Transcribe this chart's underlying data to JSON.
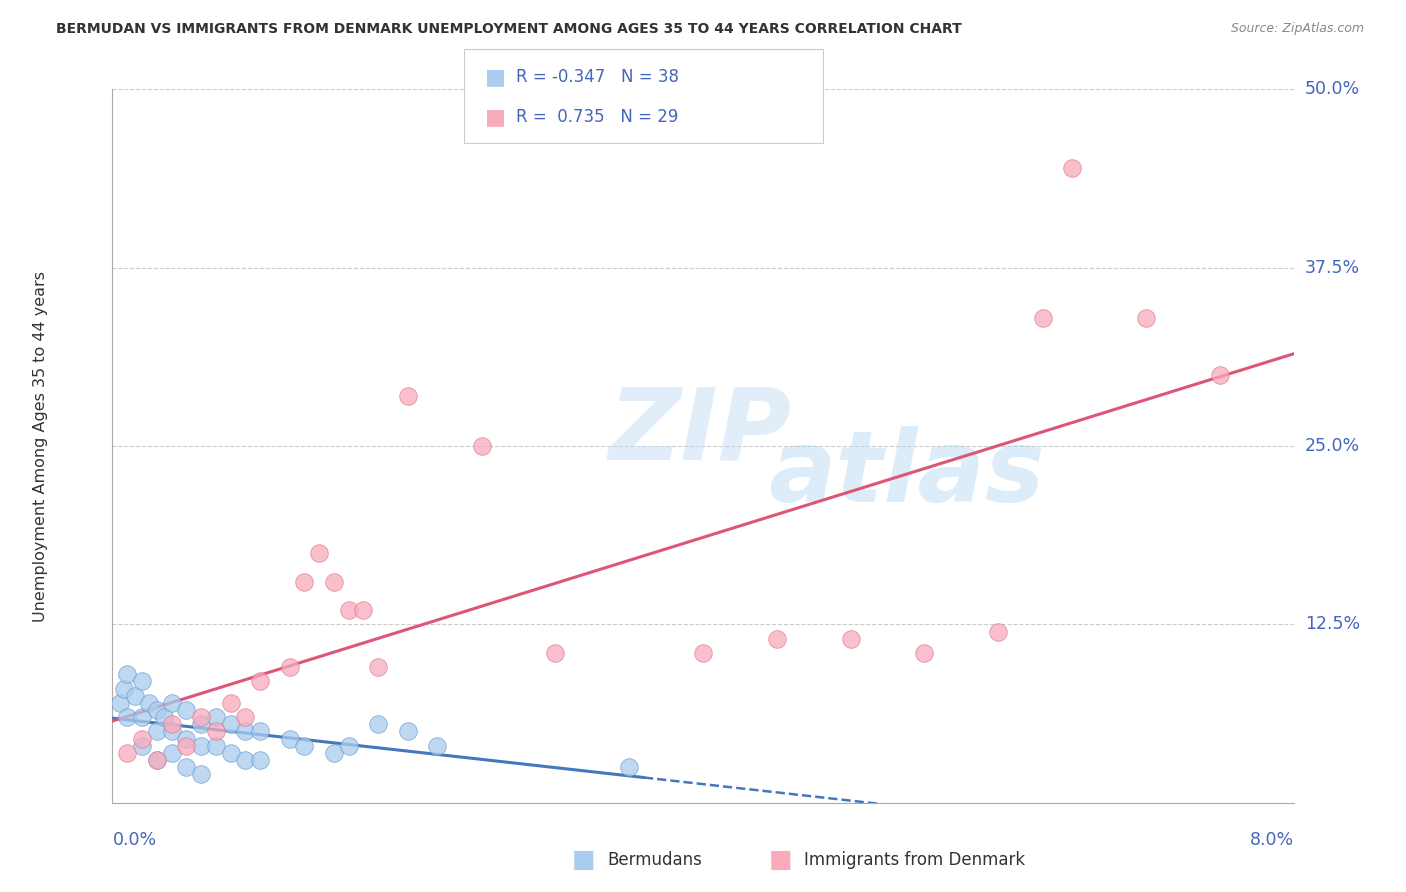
{
  "title": "BERMUDAN VS IMMIGRANTS FROM DENMARK UNEMPLOYMENT AMONG AGES 35 TO 44 YEARS CORRELATION CHART",
  "source": "Source: ZipAtlas.com",
  "ylabel": "Unemployment Among Ages 35 to 44 years",
  "R1": -0.347,
  "N1": 38,
  "R2": 0.735,
  "N2": 29,
  "color_blue_fill": "#aaccee",
  "color_blue_edge": "#6699cc",
  "color_pink_fill": "#f9aabb",
  "color_pink_edge": "#dd7788",
  "line_blue_color": "#4477bb",
  "line_pink_color": "#dd5577",
  "text_blue": "#4466bb",
  "title_color": "#333333",
  "xmin": 0.0,
  "xmax": 0.08,
  "ymin": 0.0,
  "ymax": 0.5,
  "yticks": [
    0.0,
    0.125,
    0.25,
    0.375,
    0.5
  ],
  "ytick_labels": [
    "",
    "12.5%",
    "25.0%",
    "37.5%",
    "50.0%"
  ],
  "legend_label1": "Bermudans",
  "legend_label2": "Immigrants from Denmark",
  "blue_points": [
    [
      0.0005,
      0.07
    ],
    [
      0.0008,
      0.08
    ],
    [
      0.001,
      0.06
    ],
    [
      0.001,
      0.09
    ],
    [
      0.0015,
      0.075
    ],
    [
      0.002,
      0.085
    ],
    [
      0.002,
      0.06
    ],
    [
      0.002,
      0.04
    ],
    [
      0.0025,
      0.07
    ],
    [
      0.003,
      0.065
    ],
    [
      0.003,
      0.05
    ],
    [
      0.003,
      0.03
    ],
    [
      0.0035,
      0.06
    ],
    [
      0.004,
      0.07
    ],
    [
      0.004,
      0.05
    ],
    [
      0.004,
      0.035
    ],
    [
      0.005,
      0.065
    ],
    [
      0.005,
      0.045
    ],
    [
      0.005,
      0.025
    ],
    [
      0.006,
      0.055
    ],
    [
      0.006,
      0.04
    ],
    [
      0.006,
      0.02
    ],
    [
      0.007,
      0.06
    ],
    [
      0.007,
      0.04
    ],
    [
      0.008,
      0.055
    ],
    [
      0.008,
      0.035
    ],
    [
      0.009,
      0.05
    ],
    [
      0.009,
      0.03
    ],
    [
      0.01,
      0.05
    ],
    [
      0.01,
      0.03
    ],
    [
      0.012,
      0.045
    ],
    [
      0.013,
      0.04
    ],
    [
      0.015,
      0.035
    ],
    [
      0.016,
      0.04
    ],
    [
      0.018,
      0.055
    ],
    [
      0.02,
      0.05
    ],
    [
      0.022,
      0.04
    ],
    [
      0.035,
      0.025
    ]
  ],
  "pink_points": [
    [
      0.001,
      0.035
    ],
    [
      0.002,
      0.045
    ],
    [
      0.003,
      0.03
    ],
    [
      0.004,
      0.055
    ],
    [
      0.005,
      0.04
    ],
    [
      0.006,
      0.06
    ],
    [
      0.007,
      0.05
    ],
    [
      0.008,
      0.07
    ],
    [
      0.009,
      0.06
    ],
    [
      0.01,
      0.085
    ],
    [
      0.012,
      0.095
    ],
    [
      0.013,
      0.155
    ],
    [
      0.014,
      0.175
    ],
    [
      0.015,
      0.155
    ],
    [
      0.016,
      0.135
    ],
    [
      0.017,
      0.135
    ],
    [
      0.018,
      0.095
    ],
    [
      0.02,
      0.285
    ],
    [
      0.025,
      0.25
    ],
    [
      0.03,
      0.105
    ],
    [
      0.04,
      0.105
    ],
    [
      0.045,
      0.115
    ],
    [
      0.05,
      0.115
    ],
    [
      0.055,
      0.105
    ],
    [
      0.06,
      0.12
    ],
    [
      0.063,
      0.34
    ],
    [
      0.065,
      0.445
    ],
    [
      0.07,
      0.34
    ],
    [
      0.075,
      0.3
    ]
  ],
  "watermark_zip": "ZIP",
  "watermark_atlas": "atlas"
}
